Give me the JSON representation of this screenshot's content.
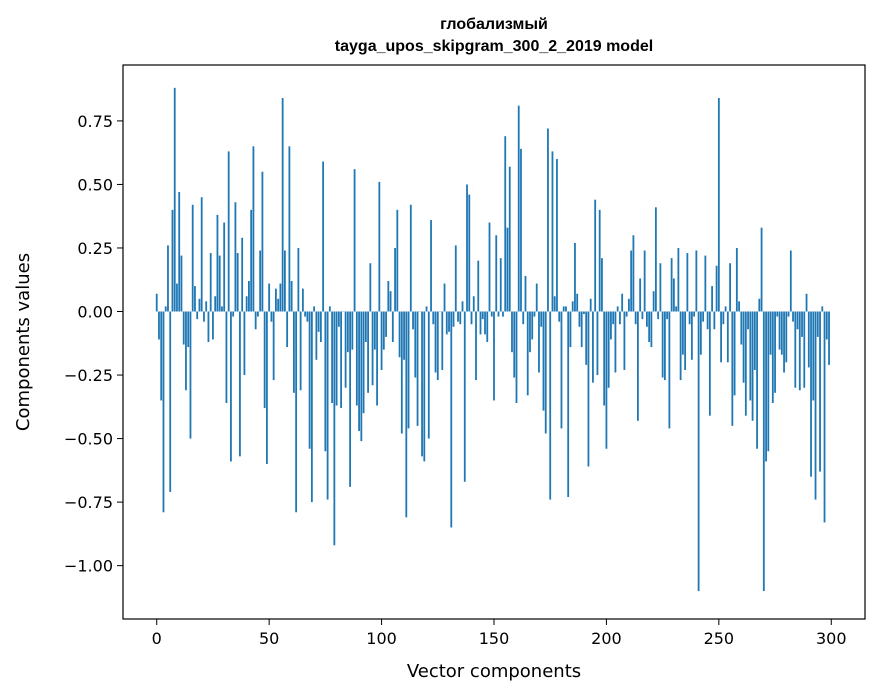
{
  "chart_data": {
    "type": "bar",
    "title": "глобализмый",
    "subtitle": "tayga_upos_skipgram_300_2_2019 model",
    "xlabel": "Vector components",
    "ylabel": "Components values",
    "xlim": [
      -15,
      315
    ],
    "ylim": [
      -1.21,
      0.97
    ],
    "xticks": [
      0,
      50,
      100,
      150,
      200,
      250,
      300
    ],
    "xtick_labels": [
      "0",
      "50",
      "100",
      "150",
      "200",
      "250",
      "300"
    ],
    "yticks": [
      0.75,
      0.5,
      0.25,
      0.0,
      -0.25,
      -0.5,
      -0.75,
      -1.0
    ],
    "ytick_labels": [
      "0.75",
      "0.50",
      "0.25",
      "0.00",
      "−0.25",
      "−0.50",
      "−0.75",
      "−1.00"
    ],
    "grid": false,
    "bar_color": "#1f77b4",
    "x_start": 0,
    "values": [
      0.07,
      -0.11,
      -0.35,
      -0.79,
      0.02,
      0.26,
      -0.71,
      0.4,
      0.88,
      0.11,
      0.47,
      0.22,
      -0.13,
      -0.31,
      -0.14,
      -0.5,
      0.42,
      0.1,
      -0.03,
      0.05,
      0.45,
      -0.04,
      0.04,
      -0.12,
      0.23,
      -0.11,
      0.06,
      0.38,
      0.22,
      0.02,
      0.35,
      -0.36,
      0.63,
      -0.59,
      -0.02,
      0.43,
      0.23,
      -0.57,
      0.29,
      -0.25,
      0.06,
      0.12,
      0.4,
      0.65,
      -0.07,
      -0.02,
      0.24,
      0.55,
      -0.38,
      -0.6,
      0.11,
      -0.04,
      -0.27,
      0.09,
      0.05,
      0.11,
      0.84,
      0.24,
      -0.14,
      0.65,
      0.12,
      -0.32,
      -0.79,
      0.25,
      -0.31,
      0.09,
      -0.02,
      -0.04,
      -0.54,
      -0.75,
      0.02,
      -0.19,
      -0.08,
      -0.12,
      0.59,
      -0.55,
      -0.74,
      0.02,
      -0.36,
      -0.92,
      -0.37,
      -0.06,
      -0.38,
      0.0,
      -0.3,
      -0.16,
      -0.69,
      -0.15,
      0.56,
      -0.37,
      -0.47,
      -0.51,
      -0.4,
      -0.12,
      -0.32,
      0.19,
      -0.29,
      -0.15,
      -0.37,
      0.51,
      -0.23,
      -0.15,
      -0.1,
      0.12,
      0.08,
      -0.12,
      0.25,
      0.4,
      -0.18,
      -0.48,
      -0.19,
      -0.81,
      -0.46,
      0.42,
      -0.07,
      -0.26,
      -0.45,
      0.0,
      -0.57,
      -0.59,
      0.02,
      -0.5,
      0.36,
      -0.05,
      -0.24,
      -0.27,
      0.0,
      -0.23,
      0.11,
      -0.09,
      -0.08,
      -0.85,
      -0.06,
      0.26,
      -0.04,
      -0.05,
      0.04,
      -0.67,
      0.5,
      0.46,
      -0.05,
      0.06,
      -0.27,
      0.2,
      -0.09,
      -0.03,
      -0.09,
      -0.12,
      0.35,
      -0.02,
      -0.35,
      0.3,
      -0.02,
      0.21,
      -0.02,
      0.69,
      0.33,
      0.57,
      -0.16,
      -0.26,
      -0.36,
      0.81,
      0.64,
      -0.05,
      0.14,
      -0.33,
      -0.16,
      -0.11,
      -0.02,
      0.11,
      -0.24,
      -0.06,
      -0.39,
      -0.48,
      0.72,
      -0.74,
      0.63,
      0.06,
      0.6,
      -0.04,
      -0.46,
      0.02,
      0.02,
      -0.73,
      -0.14,
      0.04,
      0.27,
      0.07,
      -0.06,
      -0.14,
      -0.01,
      -0.21,
      -0.61,
      0.05,
      -0.28,
      0.44,
      -0.25,
      0.4,
      0.21,
      -0.37,
      -0.54,
      -0.3,
      -0.11,
      -0.05,
      -0.24,
      0.02,
      -0.05,
      0.07,
      -0.23,
      -0.02,
      0.05,
      0.24,
      0.3,
      -0.05,
      -0.43,
      0.13,
      -0.03,
      0.24,
      -0.06,
      -0.12,
      -0.14,
      0.08,
      0.41,
      -0.03,
      0.19,
      -0.26,
      -0.27,
      -0.03,
      -0.46,
      0.21,
      0.13,
      0.02,
      0.25,
      -0.27,
      -0.17,
      -0.23,
      0.23,
      -0.05,
      -0.19,
      -0.02,
      0.24,
      -1.1,
      -0.17,
      -0.04,
      0.22,
      -0.07,
      -0.41,
      0.1,
      -0.07,
      0.18,
      0.84,
      -0.2,
      -0.05,
      0.02,
      -0.2,
      0.19,
      -0.45,
      -0.33,
      0.25,
      0.04,
      -0.13,
      -0.28,
      -0.41,
      -0.07,
      -0.35,
      -0.43,
      -0.23,
      -0.54,
      0.05,
      0.33,
      -1.1,
      -0.59,
      -0.55,
      -0.17,
      -0.36,
      -0.32,
      -0.02,
      -0.15,
      -0.17,
      -0.24,
      -0.2,
      -0.02,
      0.24,
      -0.04,
      -0.3,
      -0.07,
      -0.31,
      -0.1,
      -0.3,
      0.07,
      -0.22,
      -0.65,
      -0.35,
      -0.74,
      -0.1,
      -0.63,
      0.02,
      -0.83,
      -0.11,
      -0.21
    ]
  }
}
